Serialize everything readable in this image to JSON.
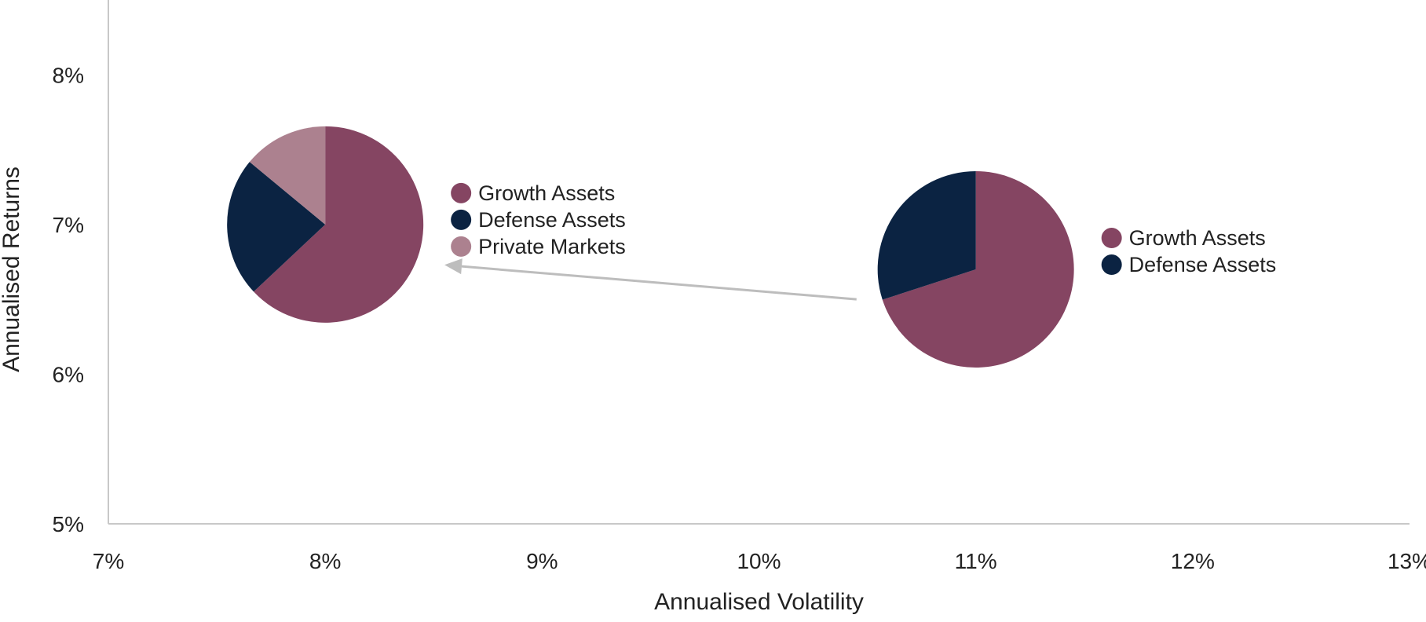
{
  "chart_data": {
    "type": "scatter",
    "title": "",
    "xlabel": "Annualised Volatility",
    "ylabel": "Annualised Returns",
    "xlim": [
      7,
      13
    ],
    "ylim": [
      5,
      8.5
    ],
    "x_ticks": [
      {
        "value": 7,
        "label": "7%"
      },
      {
        "value": 8,
        "label": "8%"
      },
      {
        "value": 9,
        "label": "9%"
      },
      {
        "value": 10,
        "label": "10%"
      },
      {
        "value": 11,
        "label": "11%"
      },
      {
        "value": 12,
        "label": "12%"
      },
      {
        "value": 13,
        "label": "13%"
      }
    ],
    "y_ticks": [
      {
        "value": 5,
        "label": "5%"
      },
      {
        "value": 6,
        "label": "6%"
      },
      {
        "value": 7,
        "label": "7%"
      },
      {
        "value": 8,
        "label": "8%"
      }
    ],
    "grid": false,
    "portfolios": [
      {
        "id": "portfolio-a",
        "volatility": 8.0,
        "return": 7.0,
        "legend_position": "right",
        "slices": [
          {
            "name": "Growth Assets",
            "share": 0.63,
            "color": "#854562"
          },
          {
            "name": "Defense Assets",
            "share": 0.23,
            "color": "#0b2342"
          },
          {
            "name": "Private Markets",
            "share": 0.14,
            "color": "#ac818f"
          }
        ]
      },
      {
        "id": "portfolio-b",
        "volatility": 11.0,
        "return": 6.7,
        "legend_position": "right",
        "slices": [
          {
            "name": "Growth Assets",
            "share": 0.7,
            "color": "#854562"
          },
          {
            "name": "Defense Assets",
            "share": 0.3,
            "color": "#0b2342"
          }
        ]
      }
    ],
    "arrow": {
      "from": {
        "x": 10.45,
        "y": 6.5
      },
      "to": {
        "x": 8.55,
        "y": 6.73
      },
      "color": "#bdbdbd"
    },
    "axis_color": "#c8c8c8"
  }
}
